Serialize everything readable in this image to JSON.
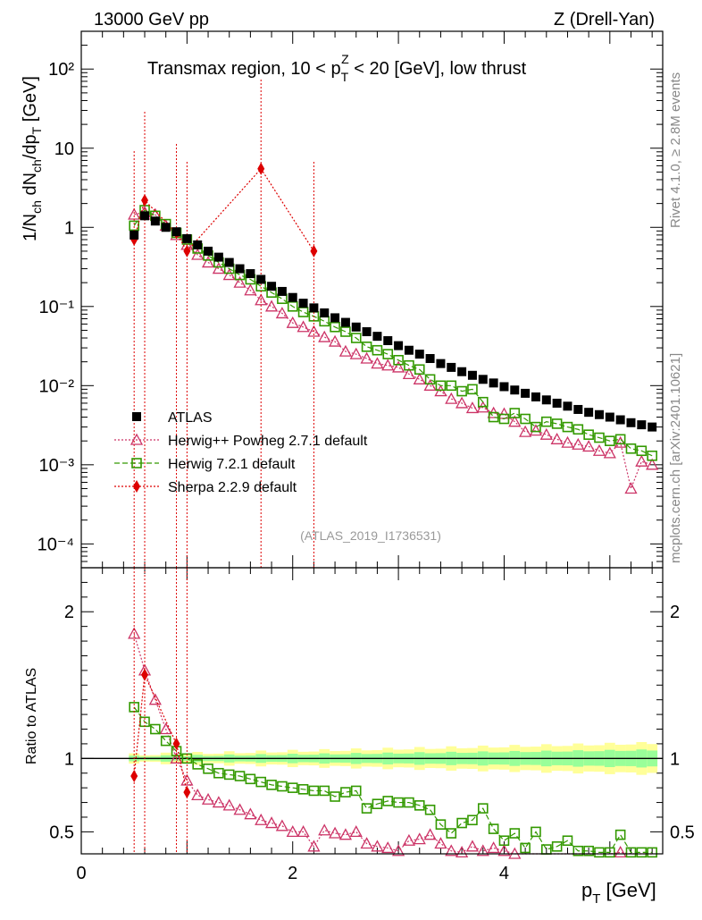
{
  "header": {
    "left": "13000 GeV pp",
    "right": "Z (Drell-Yan)",
    "side_top": "Rivet 4.1.0, ≥ 2.8M events",
    "side_bottom": "mcplots.cern.ch [arXiv:2401.10621]",
    "analysis_id": "(ATLAS_2019_I1736531)"
  },
  "chart_data": [
    {
      "type": "scatter",
      "panel": "main",
      "title": "Transmax region, 10 < p_T^Z < 20 [GeV], low thrust",
      "ylabel": "1/N_ch dN_ch/dp_T [GeV]",
      "xlim": [
        0,
        5.5
      ],
      "ylim": [
        5e-05,
        300
      ],
      "yscale": "log",
      "ytick_labels": [
        "10^-4",
        "10^-3",
        "10^-2",
        "10^-1",
        "1",
        "10",
        "10^2"
      ],
      "series": [
        {
          "name": "ATLAS",
          "color": "#000000",
          "marker": "square-filled",
          "x": [
            0.5,
            0.6,
            0.7,
            0.8,
            0.9,
            1.0,
            1.1,
            1.2,
            1.3,
            1.4,
            1.5,
            1.6,
            1.7,
            1.8,
            1.9,
            2.0,
            2.1,
            2.2,
            2.3,
            2.4,
            2.5,
            2.6,
            2.7,
            2.8,
            2.9,
            3.0,
            3.1,
            3.2,
            3.3,
            3.4,
            3.5,
            3.6,
            3.7,
            3.8,
            3.9,
            4.0,
            4.1,
            4.2,
            4.3,
            4.4,
            4.5,
            4.6,
            4.7,
            4.8,
            4.9,
            5.0,
            5.1,
            5.2,
            5.3,
            5.4
          ],
          "y": [
            0.8,
            1.4,
            1.2,
            1.0,
            0.88,
            0.72,
            0.6,
            0.5,
            0.42,
            0.36,
            0.3,
            0.26,
            0.22,
            0.18,
            0.155,
            0.13,
            0.11,
            0.096,
            0.083,
            0.072,
            0.063,
            0.055,
            0.048,
            0.042,
            0.037,
            0.032,
            0.028,
            0.025,
            0.022,
            0.019,
            0.017,
            0.015,
            0.0135,
            0.012,
            0.0108,
            0.0097,
            0.0088,
            0.008,
            0.0072,
            0.0066,
            0.006,
            0.0055,
            0.005,
            0.0046,
            0.0043,
            0.004,
            0.0037,
            0.0034,
            0.0032,
            0.003
          ]
        },
        {
          "name": "Herwig++ Powheg 2.7.1 default",
          "color": "#cc3366",
          "marker": "triangle-open",
          "linestyle": "dotted",
          "x": [
            0.5,
            0.6,
            0.7,
            0.8,
            0.9,
            1.0,
            1.1,
            1.2,
            1.3,
            1.4,
            1.5,
            1.6,
            1.7,
            1.8,
            1.9,
            2.0,
            2.1,
            2.2,
            2.3,
            2.4,
            2.5,
            2.6,
            2.7,
            2.8,
            2.9,
            3.0,
            3.1,
            3.2,
            3.3,
            3.4,
            3.5,
            3.6,
            3.7,
            3.8,
            3.9,
            4.0,
            4.1,
            4.2,
            4.3,
            4.4,
            4.5,
            4.6,
            4.7,
            4.8,
            4.9,
            5.0,
            5.1,
            5.2,
            5.3,
            5.4
          ],
          "y": [
            1.45,
            1.55,
            1.45,
            1.05,
            0.8,
            0.6,
            0.45,
            0.36,
            0.3,
            0.25,
            0.2,
            0.16,
            0.12,
            0.1,
            0.082,
            0.062,
            0.055,
            0.048,
            0.041,
            0.036,
            0.027,
            0.025,
            0.022,
            0.019,
            0.018,
            0.017,
            0.014,
            0.012,
            0.01,
            0.0085,
            0.0068,
            0.006,
            0.0052,
            0.0053,
            0.0045,
            0.0044,
            0.0035,
            0.0026,
            0.0027,
            0.0024,
            0.0021,
            0.0019,
            0.0018,
            0.0017,
            0.0015,
            0.0014,
            0.0019,
            0.0005,
            0.0011,
            0.001
          ]
        },
        {
          "name": "Herwig 7.2.1 default",
          "color": "#339900",
          "marker": "square-open",
          "linestyle": "dashed",
          "x": [
            0.5,
            0.6,
            0.7,
            0.8,
            0.9,
            1.0,
            1.1,
            1.2,
            1.3,
            1.4,
            1.5,
            1.6,
            1.7,
            1.8,
            1.9,
            2.0,
            2.1,
            2.2,
            2.3,
            2.4,
            2.5,
            2.6,
            2.7,
            2.8,
            2.9,
            3.0,
            3.1,
            3.2,
            3.3,
            3.4,
            3.5,
            3.6,
            3.7,
            3.8,
            3.9,
            4.0,
            4.1,
            4.2,
            4.3,
            4.4,
            4.5,
            4.6,
            4.7,
            4.8,
            4.9,
            5.0,
            5.1,
            5.2,
            5.3,
            5.4
          ],
          "y": [
            1.05,
            1.65,
            1.4,
            1.1,
            0.85,
            0.7,
            0.54,
            0.44,
            0.36,
            0.3,
            0.25,
            0.22,
            0.18,
            0.15,
            0.125,
            0.1,
            0.085,
            0.075,
            0.065,
            0.055,
            0.048,
            0.04,
            0.031,
            0.028,
            0.025,
            0.021,
            0.018,
            0.016,
            0.012,
            0.01,
            0.01,
            0.0085,
            0.009,
            0.0062,
            0.004,
            0.0038,
            0.0045,
            0.0038,
            0.003,
            0.0035,
            0.0033,
            0.003,
            0.0028,
            0.0024,
            0.0022,
            0.002,
            0.0021,
            0.0016,
            0.0015,
            0.0013
          ]
        },
        {
          "name": "Sherpa 2.2.9 default",
          "color": "#dd0000",
          "marker": "diamond-filled",
          "linestyle": "dotted",
          "x": [
            0.5,
            0.6,
            0.9,
            1.0,
            1.7,
            2.2
          ],
          "y": [
            0.7,
            2.2,
            0.85,
            0.5,
            5.5,
            0.5
          ]
        }
      ]
    },
    {
      "type": "scatter",
      "panel": "ratio",
      "ylabel": "Ratio to ATLAS",
      "xlabel": "p_T [GeV]",
      "xlim": [
        0,
        5.5
      ],
      "ylim": [
        0.35,
        2.3
      ],
      "xtick_labels": [
        "0",
        "2",
        "4"
      ],
      "ytick_labels": [
        "0.5",
        "1",
        "2"
      ],
      "reference": 1.0,
      "series": [
        {
          "name": "Herwig++ Powheg 2.7.1 default",
          "x": [
            0.5,
            0.6,
            0.7,
            0.8,
            0.9,
            1.0,
            1.1,
            1.2,
            1.3,
            1.4,
            1.5,
            1.6,
            1.7,
            1.8,
            1.9,
            2.0,
            2.1,
            2.2,
            2.3,
            2.4,
            2.5,
            2.6,
            2.7,
            2.8,
            2.9,
            3.0,
            3.1,
            3.2,
            3.3,
            3.4,
            3.5,
            3.6,
            3.7,
            3.8,
            3.9,
            4.0,
            4.1,
            4.2,
            4.3,
            4.4,
            4.5,
            4.6,
            4.7,
            4.8,
            4.9,
            5.0,
            5.1,
            5.2,
            5.3,
            5.4
          ],
          "y": [
            1.85,
            1.6,
            1.4,
            1.2,
            1.0,
            0.85,
            0.75,
            0.72,
            0.7,
            0.68,
            0.65,
            0.62,
            0.58,
            0.56,
            0.54,
            0.5,
            0.5,
            0.4,
            0.51,
            0.49,
            0.48,
            0.5,
            0.42,
            0.4,
            0.39,
            0.37,
            0.44,
            0.45,
            0.48,
            0.42,
            0.37,
            0.36,
            0.4,
            0.37,
            0.39,
            0.37,
            0.35,
            0.34,
            0.33,
            0.33,
            0.33,
            0.32,
            0.31,
            0.3,
            0.3,
            0.3,
            0.36,
            0.28,
            0.3,
            0.3
          ]
        },
        {
          "name": "Herwig 7.2.1 default",
          "x": [
            0.5,
            0.6,
            0.7,
            0.8,
            0.9,
            1.0,
            1.1,
            1.2,
            1.3,
            1.4,
            1.5,
            1.6,
            1.7,
            1.8,
            1.9,
            2.0,
            2.1,
            2.2,
            2.3,
            2.4,
            2.5,
            2.6,
            2.7,
            2.8,
            2.9,
            3.0,
            3.1,
            3.2,
            3.3,
            3.4,
            3.5,
            3.6,
            3.7,
            3.8,
            3.9,
            4.0,
            4.1,
            4.2,
            4.3,
            4.4,
            4.5,
            4.6,
            4.7,
            4.8,
            4.9,
            5.0,
            5.1,
            5.2,
            5.3,
            5.4
          ],
          "y": [
            1.35,
            1.25,
            1.2,
            1.12,
            1.05,
            1.0,
            0.96,
            0.93,
            0.9,
            0.89,
            0.88,
            0.86,
            0.84,
            0.82,
            0.81,
            0.8,
            0.79,
            0.78,
            0.78,
            0.74,
            0.77,
            0.78,
            0.66,
            0.69,
            0.71,
            0.7,
            0.7,
            0.68,
            0.65,
            0.55,
            0.49,
            0.56,
            0.58,
            0.66,
            0.52,
            0.44,
            0.49,
            0.39,
            0.5,
            0.38,
            0.4,
            0.44,
            0.37,
            0.37,
            0.36,
            0.36,
            0.48,
            0.36,
            0.36,
            0.36
          ]
        },
        {
          "name": "Sherpa 2.2.9 default",
          "x": [
            0.5,
            0.6,
            0.9,
            1.0
          ],
          "y": [
            0.88,
            1.57,
            1.1,
            0.77
          ]
        }
      ]
    }
  ],
  "legend": [
    {
      "label": "ATLAS"
    },
    {
      "label": "Herwig++ Powheg 2.7.1 default"
    },
    {
      "label": "Herwig 7.2.1 default"
    },
    {
      "label": "Sherpa 2.2.9 default"
    }
  ]
}
